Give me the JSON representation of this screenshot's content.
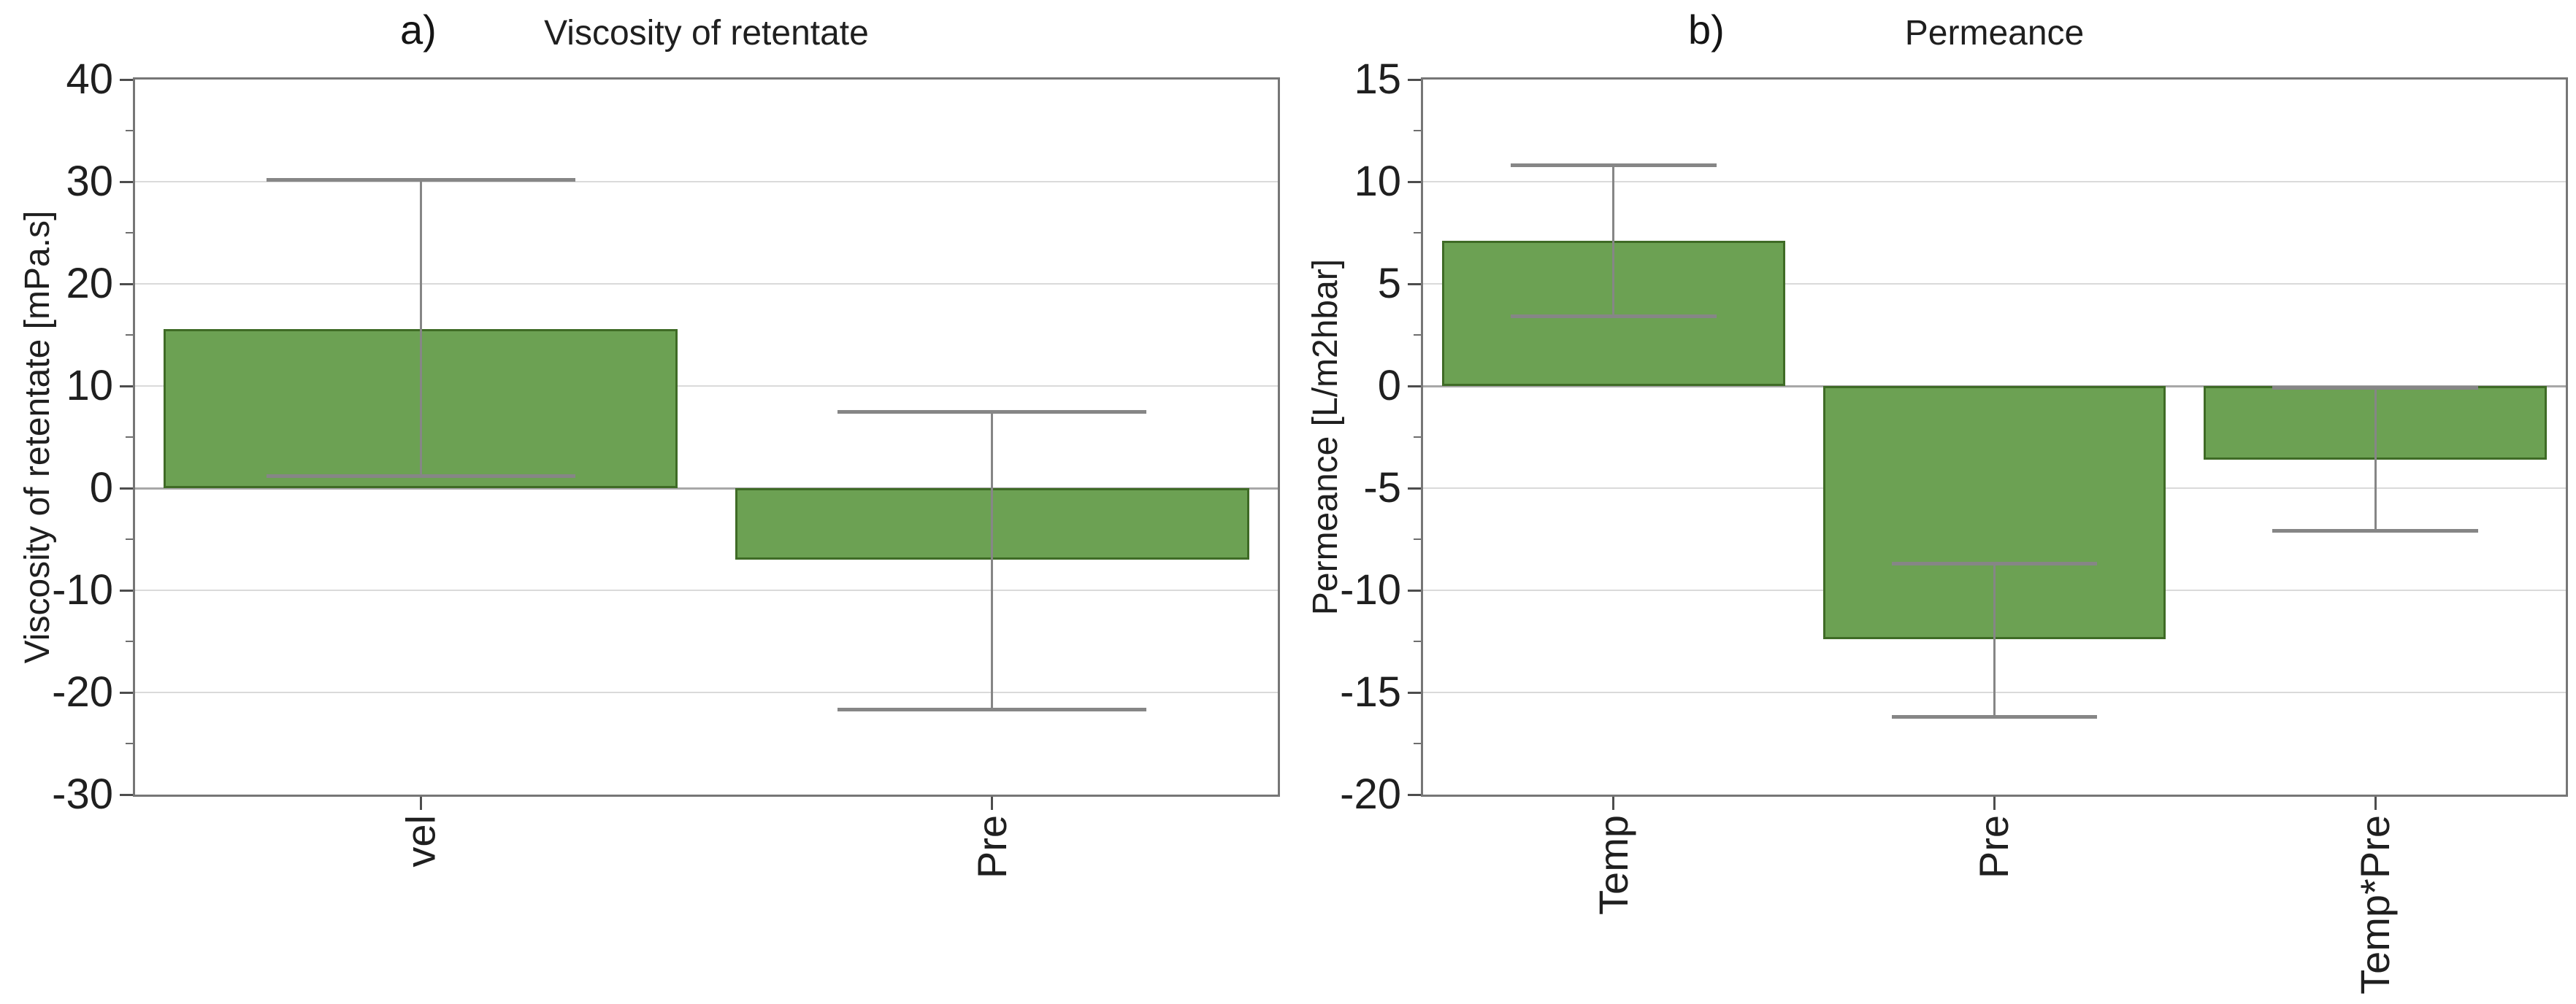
{
  "page": {
    "background": "#ffffff"
  },
  "style": {
    "bar_fill": "#6ca153",
    "bar_edge": "#3f6b26",
    "error_color": "#868686",
    "grid_color": "#dadada",
    "zero_line_color": "#a8a8a8",
    "frame_color": "#767676",
    "tick_mark_color": "#4d4d4d",
    "minor_tick_color": "#6e6e6e",
    "text_color": "#1f1f1f"
  },
  "chart_data": [
    {
      "type": "bar",
      "panel_label": "a)",
      "title": "Viscosity of retentate",
      "xlabel": "",
      "ylabel": "Viscosity of retentate [mPa.s]",
      "ylim": [
        -30,
        40
      ],
      "ytick_step": 10,
      "ytick_labels": [
        "40",
        "30",
        "20",
        "10",
        "0",
        "-10",
        "-20",
        "-30"
      ],
      "grid": true,
      "legend": "none",
      "categories": [
        "vel",
        "Pre"
      ],
      "values": [
        15.6,
        -7.0
      ],
      "error_low": [
        1.2,
        -21.7
      ],
      "error_high": [
        30.2,
        7.5
      ]
    },
    {
      "type": "bar",
      "panel_label": "b)",
      "title": "Permeance",
      "xlabel": "",
      "ylabel": "Permeance [L/m2hbar]",
      "ylim": [
        -20,
        15
      ],
      "ytick_step": 5,
      "ytick_labels": [
        "15",
        "10",
        "5",
        "0",
        "-5",
        "-10",
        "-15",
        "-20"
      ],
      "grid": true,
      "legend": "none",
      "categories": [
        "Temp",
        "Pre",
        "Temp*Pre"
      ],
      "values": [
        7.1,
        -12.4,
        -3.6
      ],
      "error_low": [
        3.4,
        -16.2,
        -7.1
      ],
      "error_high": [
        10.8,
        -8.7,
        -0.1
      ]
    }
  ]
}
